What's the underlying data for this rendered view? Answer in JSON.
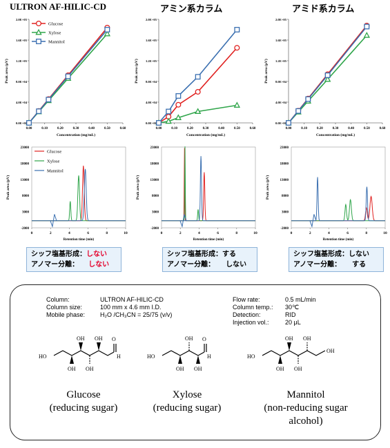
{
  "columns": [
    {
      "title": "ULTRON AF-HILIC-CD",
      "schiff_label": "シッフ塩基形成：",
      "schiff_value": "しない",
      "anomer_label": "アノマー分離：",
      "anomer_value": "しない"
    },
    {
      "title": "アミン系カラム",
      "schiff_label": "シッフ塩基形成：",
      "schiff_value": "する",
      "anomer_label": "アノマー分離：",
      "anomer_value": "しない"
    },
    {
      "title": "アミド系カラム",
      "schiff_label": "シッフ塩基形成：",
      "schiff_value": "しない",
      "anomer_label": "アノマー分離：",
      "anomer_value": "する"
    }
  ],
  "conditions": {
    "left_labels": [
      "Column:",
      "Column size:",
      "Mobile phase:"
    ],
    "left_values": [
      "ULTRON AF-HILIC-CD",
      "100 mm x 4.6 mm I.D.",
      "H₂O /CH₃CN = 25/75 (v/v)"
    ],
    "right_labels": [
      "Flow rate:",
      "Column temp.:",
      "Detection:",
      "Injection vol.:"
    ],
    "right_values": [
      "0.5 mL/min",
      "30℃",
      "RID",
      "20 μL"
    ]
  },
  "compounds": [
    {
      "name": "Glucose",
      "desc": "(reducing sugar)"
    },
    {
      "name": "Xylose",
      "desc": "(reducing sugar)"
    },
    {
      "name": "Mannitol",
      "desc": "(non-reducing sugar alcohol)"
    }
  ],
  "structure_labels": {
    "oh": "OH",
    "ho": "HO",
    "h": "H",
    "o": "O"
  },
  "series_colors": {
    "Glucose": "#e0201f",
    "Xylose": "#2fa54a",
    "Mannitol": "#3a6fb0"
  },
  "chart_data": [
    {
      "type": "line",
      "panel": "calibration-ultron",
      "xlabel": "Concentration  (mg/mL)",
      "ylabel": "Peak area (μV)",
      "xlim": [
        0,
        0.6
      ],
      "ylim": [
        0,
        200000
      ],
      "xticks": [
        "0.00",
        "0.10",
        "0.20",
        "0.30",
        "0.40",
        "0.50",
        "0.60"
      ],
      "yticks": [
        "0.0E+00",
        "4.0E+04",
        "8.0E+04",
        "1.2E+05",
        "1.6E+05",
        "2.0E+05"
      ],
      "legend": "top-left",
      "grid": false,
      "x": [
        0.0,
        0.0625,
        0.125,
        0.25,
        0.5
      ],
      "series": [
        {
          "name": "Glucose",
          "marker": "circle",
          "values": [
            0,
            23000,
            46000,
            92000,
            184000
          ]
        },
        {
          "name": "Xylose",
          "marker": "triangle",
          "values": [
            0,
            21500,
            43000,
            86000,
            172000
          ]
        },
        {
          "name": "Mannitol",
          "marker": "square",
          "values": [
            0,
            22500,
            45000,
            90000,
            180000
          ]
        }
      ]
    },
    {
      "type": "line",
      "panel": "calibration-amine",
      "xlabel": "Concentration  (mg/mL)",
      "ylabel": "Peak area (μV)",
      "xlim": [
        0,
        0.6
      ],
      "ylim": [
        0,
        200000
      ],
      "xticks": [
        "0.00",
        "0.10",
        "0.20",
        "0.30",
        "0.40",
        "0.50",
        "0.60"
      ],
      "yticks": [
        "0.0E+00",
        "4.0E+04",
        "8.0E+04",
        "1.2E+05",
        "1.6E+05",
        "2.0E+05"
      ],
      "legend": "none",
      "grid": false,
      "x": [
        0.0,
        0.0625,
        0.125,
        0.25,
        0.5
      ],
      "series": [
        {
          "name": "Glucose",
          "marker": "circle",
          "values": [
            0,
            12000,
            35000,
            60000,
            145000
          ]
        },
        {
          "name": "Xylose",
          "marker": "triangle",
          "values": [
            0,
            3000,
            10000,
            22000,
            34000
          ]
        },
        {
          "name": "Mannitol",
          "marker": "square",
          "values": [
            0,
            22000,
            52000,
            89000,
            180000
          ]
        }
      ]
    },
    {
      "type": "line",
      "panel": "calibration-amide",
      "xlabel": "Concentration  (mg/mL)",
      "ylabel": "Peak area (μV)",
      "xlim": [
        0,
        0.6
      ],
      "ylim": [
        0,
        200000
      ],
      "xticks": [
        "0.00",
        "0.10",
        "0.20",
        "0.30",
        "0.40",
        "0.50",
        "0.60"
      ],
      "yticks": [
        "0.0E+00",
        "4.0E+04",
        "8.0E+04",
        "1.2E+05",
        "1.6E+05",
        "2.0E+05"
      ],
      "legend": "none",
      "grid": false,
      "x": [
        0.0,
        0.0625,
        0.125,
        0.25,
        0.5
      ],
      "series": [
        {
          "name": "Glucose",
          "marker": "circle",
          "values": [
            0,
            23500,
            47000,
            94000,
            188000
          ]
        },
        {
          "name": "Xylose",
          "marker": "triangle",
          "values": [
            0,
            21000,
            42000,
            84000,
            169000
          ]
        },
        {
          "name": "Mannitol",
          "marker": "square",
          "values": [
            0,
            23000,
            46000,
            92000,
            186000
          ]
        }
      ]
    },
    {
      "type": "line",
      "panel": "chromatogram-ultron",
      "xlabel": "Retention time (min)",
      "ylabel": "Peak area (pV)",
      "xlim": [
        0,
        10
      ],
      "ylim": [
        -2000,
        23000
      ],
      "xticks": [
        "0",
        "2",
        "4",
        "6",
        "8",
        "10"
      ],
      "yticks": [
        "-2000",
        "3000",
        "8000",
        "13000",
        "18000",
        "23000"
      ],
      "legend": "top-left",
      "grid": false,
      "series": [
        {
          "name": "Glucose",
          "peaks": [
            {
              "rt": 5.5,
              "height": 17000,
              "width": 0.09
            }
          ]
        },
        {
          "name": "Xylose",
          "peaks": [
            {
              "rt": 4.1,
              "height": 6000,
              "width": 0.06
            },
            {
              "rt": 5.0,
              "height": 14000,
              "width": 0.09
            }
          ]
        },
        {
          "name": "Mannitol",
          "peaks": [
            {
              "rt": 5.7,
              "height": 16000,
              "width": 0.1
            }
          ]
        }
      ]
    },
    {
      "type": "line",
      "panel": "chromatogram-amine",
      "xlabel": "Retention time (min)",
      "ylabel": "Peak area (pV)",
      "xlim": [
        0,
        10
      ],
      "ylim": [
        -2000,
        23000
      ],
      "xticks": [
        "0",
        "2",
        "4",
        "6",
        "8",
        "10"
      ],
      "yticks": [
        "-2000",
        "3000",
        "8000",
        "13000",
        "18000",
        "23000"
      ],
      "legend": "none",
      "grid": false,
      "series": [
        {
          "name": "Glucose",
          "peaks": [
            {
              "rt": 2.45,
              "height": 22500,
              "width": 0.03
            },
            {
              "rt": 4.55,
              "height": 15000,
              "width": 0.06
            }
          ]
        },
        {
          "name": "Xylose",
          "peaks": [
            {
              "rt": 2.5,
              "height": 23000,
              "width": 0.03
            },
            {
              "rt": 3.9,
              "height": 3500,
              "width": 0.05
            }
          ]
        },
        {
          "name": "Mannitol",
          "peaks": [
            {
              "rt": 4.2,
              "height": 20000,
              "width": 0.06
            }
          ]
        }
      ]
    },
    {
      "type": "line",
      "panel": "chromatogram-amide",
      "xlabel": "Retention time (min)",
      "ylabel": "Peak area (pV)",
      "xlim": [
        0,
        10
      ],
      "ylim": [
        -2000,
        23000
      ],
      "xticks": [
        "0",
        "2",
        "4",
        "6",
        "8",
        "10"
      ],
      "yticks": [
        "-2000",
        "3000",
        "8000",
        "13000",
        "18000",
        "23000"
      ],
      "legend": "none",
      "grid": false,
      "series": [
        {
          "name": "Glucose",
          "peaks": [
            {
              "rt": 8.0,
              "height": 4000,
              "width": 0.09
            },
            {
              "rt": 8.5,
              "height": 7500,
              "width": 0.12
            }
          ]
        },
        {
          "name": "Xylose",
          "peaks": [
            {
              "rt": 5.8,
              "height": 5000,
              "width": 0.08
            },
            {
              "rt": 6.3,
              "height": 6500,
              "width": 0.1
            }
          ]
        },
        {
          "name": "Mannitol",
          "peaks": [
            {
              "rt": 2.8,
              "height": 13500,
              "width": 0.06
            },
            {
              "rt": 8.05,
              "height": 10500,
              "width": 0.07
            }
          ]
        }
      ]
    }
  ]
}
